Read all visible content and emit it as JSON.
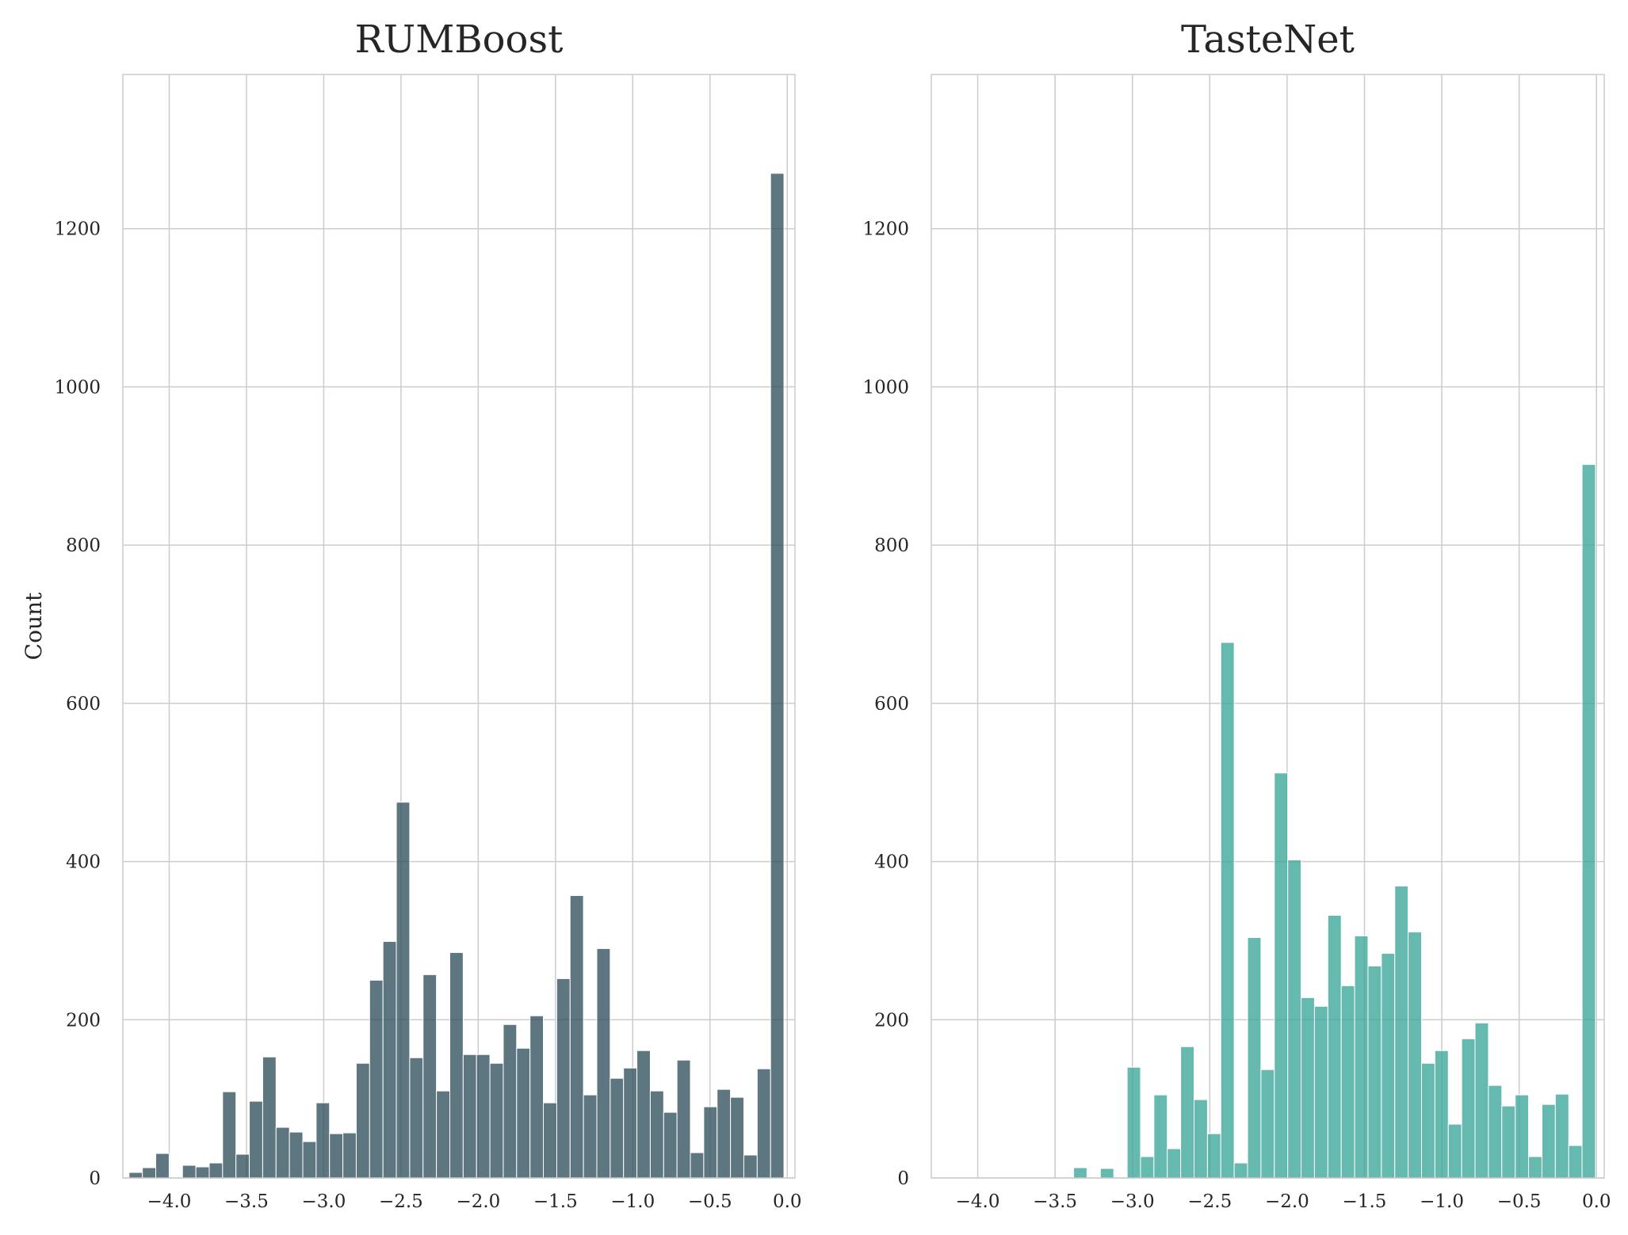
{
  "chart_data": [
    {
      "type": "bar",
      "title": "RUMBoost",
      "xlabel": "",
      "ylabel": "Count",
      "xlim": [
        -4.3,
        0.05
      ],
      "ylim": [
        0,
        1395
      ],
      "xticks": [
        -4.0,
        -3.5,
        -3.0,
        -2.5,
        -2.0,
        -1.5,
        -1.0,
        -0.5,
        0.0
      ],
      "xtick_labels": [
        "−4.0",
        "−3.5",
        "−3.0",
        "−2.5",
        "−2.0",
        "−1.5",
        "−1.0",
        "−0.5",
        "0.0"
      ],
      "yticks": [
        0,
        200,
        400,
        600,
        800,
        1000,
        1200
      ],
      "ytick_labels": [
        "0",
        "200",
        "400",
        "600",
        "800",
        "1000",
        "1200"
      ],
      "grid": true,
      "color": "#2f4f5b",
      "bin_start": -4.26,
      "bin_width": 0.0865,
      "counts": [
        7,
        13,
        31,
        0,
        16,
        14,
        19,
        109,
        30,
        97,
        153,
        64,
        58,
        46,
        95,
        56,
        57,
        145,
        250,
        299,
        475,
        152,
        257,
        110,
        285,
        156,
        156,
        145,
        194,
        164,
        205,
        95,
        252,
        357,
        105,
        290,
        126,
        139,
        161,
        110,
        83,
        149,
        32,
        90,
        112,
        102,
        29,
        138,
        1270
      ]
    },
    {
      "type": "bar",
      "title": "TasteNet",
      "xlabel": "",
      "ylabel": "",
      "xlim": [
        -4.3,
        0.05
      ],
      "ylim": [
        0,
        1395
      ],
      "xticks": [
        -4.0,
        -3.5,
        -3.0,
        -2.5,
        -2.0,
        -1.5,
        -1.0,
        -0.5,
        0.0
      ],
      "xtick_labels": [
        "−4.0",
        "−3.5",
        "−3.0",
        "−2.5",
        "−2.0",
        "−1.5",
        "−1.0",
        "−0.5",
        "0.0"
      ],
      "yticks": [
        0,
        200,
        400,
        600,
        800,
        1000,
        1200
      ],
      "ytick_labels": [
        "0",
        "200",
        "400",
        "600",
        "800",
        "1000",
        "1200"
      ],
      "grid": true,
      "color": "#3aa597",
      "bin_start": -3.38,
      "bin_width": 0.0865,
      "counts": [
        13,
        0,
        12,
        0,
        140,
        27,
        105,
        37,
        166,
        99,
        56,
        677,
        19,
        304,
        137,
        512,
        402,
        228,
        217,
        332,
        243,
        306,
        268,
        284,
        369,
        311,
        145,
        161,
        68,
        176,
        196,
        117,
        91,
        105,
        27,
        93,
        106,
        41,
        902
      ]
    }
  ]
}
